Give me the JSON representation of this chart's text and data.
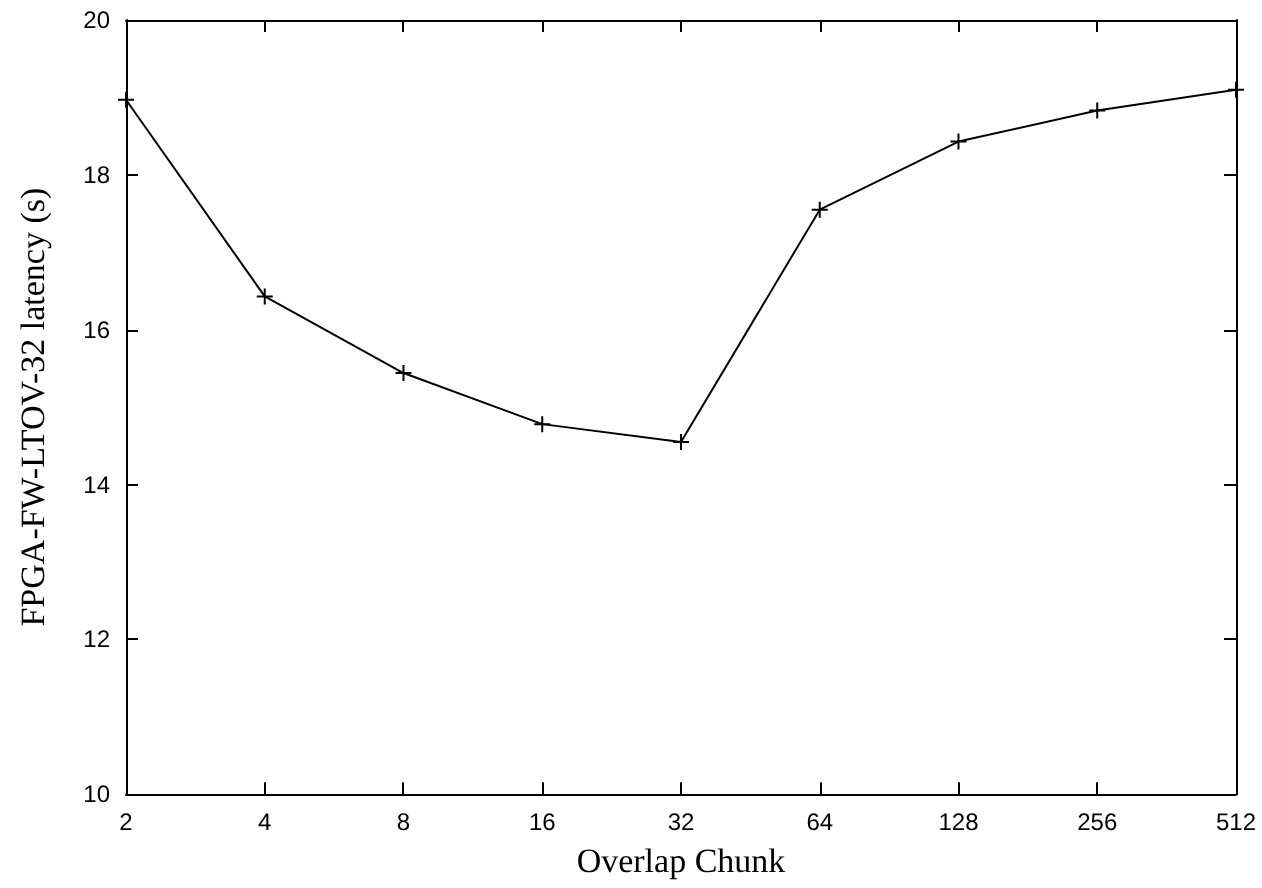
{
  "chart_data": {
    "type": "line",
    "xlabel": "Overlap Chunk",
    "ylabel": "FPGA-FW-LTOV-32 latency (s)",
    "categories": [
      "2",
      "4",
      "8",
      "16",
      "32",
      "64",
      "128",
      "256",
      "512"
    ],
    "series": [
      {
        "color": "#000000",
        "values": [
          18.97,
          16.43,
          15.44,
          14.78,
          14.55,
          17.55,
          18.43,
          18.83,
          19.1
        ]
      }
    ],
    "ylim": [
      10,
      20
    ],
    "yticks": [
      10,
      12,
      14,
      16,
      18,
      20
    ],
    "grid": false,
    "marker": "cross",
    "line_style": "solid"
  }
}
